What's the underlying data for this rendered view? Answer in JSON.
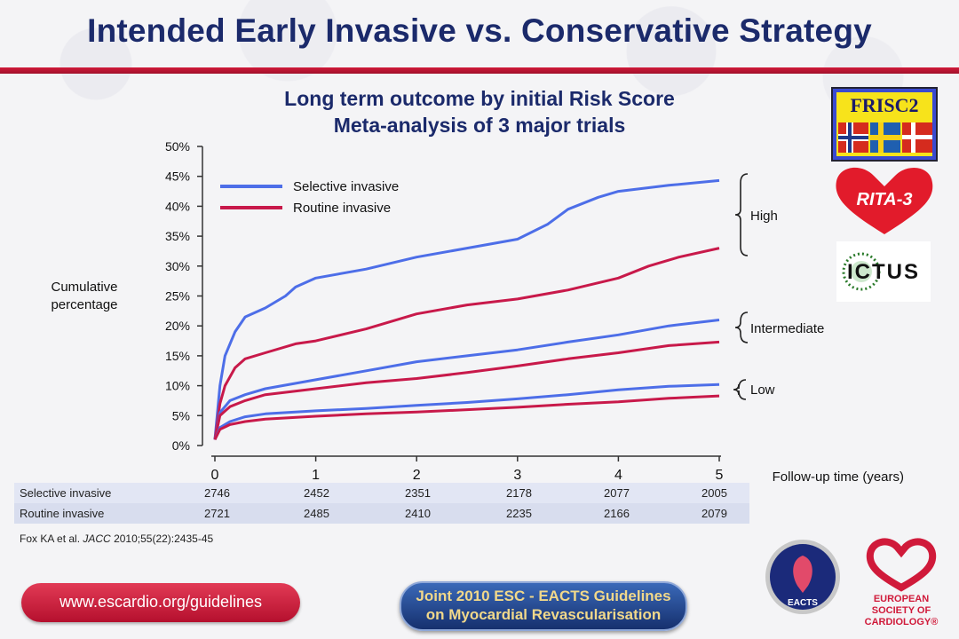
{
  "title": "Intended Early Invasive vs. Conservative Strategy",
  "subtitle_line1": "Long term outcome by initial Risk Score",
  "subtitle_line2": "Meta-analysis of 3 major trials",
  "ylabel_line1": "Cumulative",
  "ylabel_line2": "percentage",
  "xlabel": "Follow-up time (years)",
  "risk_labels": {
    "high": "High",
    "intermediate": "Intermediate",
    "low": "Low"
  },
  "chart_data": {
    "type": "line",
    "title": "Long term outcome by initial Risk Score — Meta-analysis of 3 major trials",
    "xlabel": "Follow-up time (years)",
    "ylabel": "Cumulative percentage",
    "xlim": [
      0,
      5
    ],
    "ylim": [
      0,
      50
    ],
    "x_ticks": [
      "0",
      "1",
      "2",
      "3",
      "4",
      "5"
    ],
    "y_ticks": [
      "0%",
      "5%",
      "10%",
      "15%",
      "20%",
      "25%",
      "30%",
      "35%",
      "40%",
      "45%",
      "50%"
    ],
    "legend": [
      {
        "name": "Selective invasive",
        "color": "#4d6ee8"
      },
      {
        "name": "Routine invasive",
        "color": "#c8194a"
      }
    ],
    "series": [
      {
        "name": "Selective invasive",
        "group": "High",
        "color": "#4d6ee8",
        "x": [
          0,
          0.05,
          0.1,
          0.2,
          0.3,
          0.5,
          0.7,
          0.8,
          1.0,
          1.5,
          2.0,
          2.5,
          3.0,
          3.3,
          3.5,
          3.8,
          4.0,
          4.5,
          5.0
        ],
        "y": [
          1,
          10,
          15,
          19,
          21.5,
          23,
          25,
          26.5,
          28,
          29.5,
          31.5,
          33,
          34.5,
          37,
          39.5,
          41.5,
          42.5,
          43.5,
          44.3
        ]
      },
      {
        "name": "Routine invasive",
        "group": "High",
        "color": "#c8194a",
        "x": [
          0,
          0.05,
          0.1,
          0.2,
          0.3,
          0.5,
          0.8,
          1.0,
          1.5,
          2.0,
          2.5,
          3.0,
          3.5,
          4.0,
          4.3,
          4.6,
          5.0
        ],
        "y": [
          1,
          7,
          10,
          13,
          14.5,
          15.5,
          17,
          17.5,
          19.5,
          22,
          23.5,
          24.5,
          26,
          28,
          30,
          31.5,
          33
        ]
      },
      {
        "name": "Selective invasive",
        "group": "Intermediate",
        "color": "#4d6ee8",
        "x": [
          0,
          0.05,
          0.15,
          0.3,
          0.5,
          1.0,
          1.5,
          2.0,
          2.5,
          3.0,
          3.5,
          4.0,
          4.5,
          5.0
        ],
        "y": [
          1,
          5.5,
          7.5,
          8.5,
          9.5,
          11,
          12.5,
          14,
          15,
          16,
          17.3,
          18.5,
          20,
          21
        ]
      },
      {
        "name": "Routine invasive",
        "group": "Intermediate",
        "color": "#c8194a",
        "x": [
          0,
          0.05,
          0.15,
          0.3,
          0.5,
          1.0,
          1.5,
          2.0,
          2.5,
          3.0,
          3.5,
          4.0,
          4.5,
          5.0
        ],
        "y": [
          1,
          5,
          6.5,
          7.5,
          8.5,
          9.5,
          10.5,
          11.2,
          12.2,
          13.3,
          14.5,
          15.5,
          16.7,
          17.3
        ]
      },
      {
        "name": "Selective invasive",
        "group": "Low",
        "color": "#4d6ee8",
        "x": [
          0,
          0.05,
          0.15,
          0.3,
          0.5,
          1.0,
          1.5,
          2.0,
          2.5,
          3.0,
          3.5,
          4.0,
          4.5,
          5.0
        ],
        "y": [
          1,
          3,
          4,
          4.8,
          5.3,
          5.8,
          6.2,
          6.7,
          7.2,
          7.8,
          8.5,
          9.3,
          9.9,
          10.2
        ]
      },
      {
        "name": "Routine invasive",
        "group": "Low",
        "color": "#c8194a",
        "x": [
          0,
          0.05,
          0.15,
          0.3,
          0.5,
          1.0,
          1.5,
          2.0,
          2.5,
          3.0,
          3.5,
          4.0,
          4.5,
          5.0
        ],
        "y": [
          1,
          2.7,
          3.5,
          4,
          4.4,
          4.9,
          5.3,
          5.6,
          6,
          6.4,
          6.9,
          7.3,
          7.9,
          8.3
        ]
      }
    ]
  },
  "numbers_at_risk": {
    "rows": [
      {
        "label": "Selective invasive",
        "values": [
          "2746",
          "2452",
          "2351",
          "2178",
          "2077",
          "2005"
        ]
      },
      {
        "label": "Routine invasive",
        "values": [
          "2721",
          "2485",
          "2410",
          "2235",
          "2166",
          "2079"
        ]
      }
    ]
  },
  "reference": {
    "authors": "Fox KA et al.",
    "journal": "JACC",
    "citation": "2010;55(22):2435-45"
  },
  "footer": {
    "url": "www.escardio.org/guidelines",
    "guidelines_line1": "Joint 2010 ESC - EACTS Guidelines",
    "guidelines_line2": "on Myocardial Revascularisation"
  },
  "logos": {
    "frisc": "FRISC2",
    "rita": "RITA-3",
    "icotus": "ICTUS",
    "eacts": "EACTS",
    "esc_line1": "EUROPEAN",
    "esc_line2": "SOCIETY OF",
    "esc_line3": "CARDIOLOGY®"
  }
}
